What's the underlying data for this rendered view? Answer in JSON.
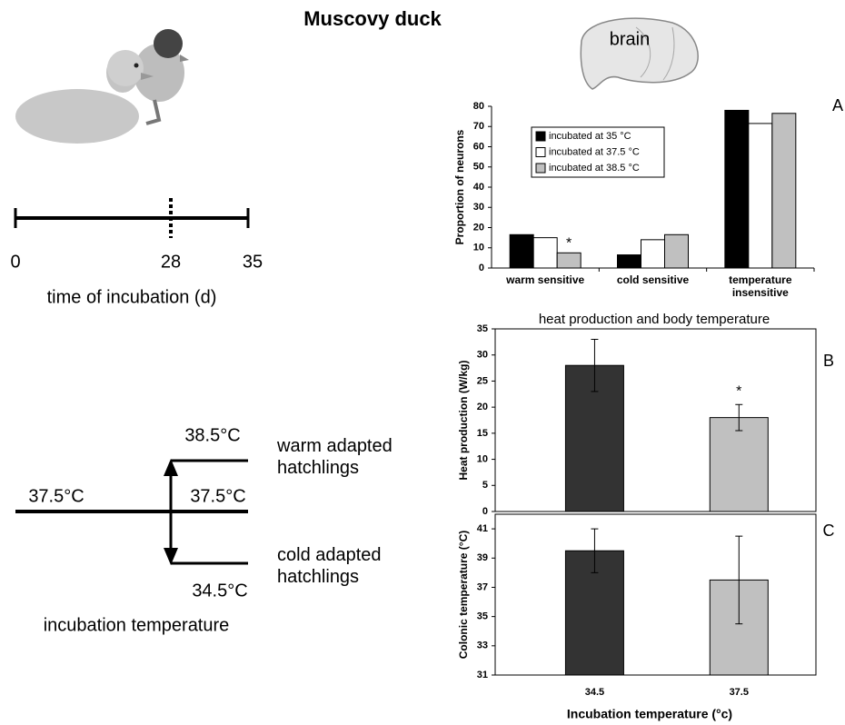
{
  "title": "Muscovy duck",
  "brain_label": "brain",
  "timeline": {
    "ticks": [
      "0",
      "28",
      "35"
    ],
    "label": "time of incubation (d)"
  },
  "temperature_diagram": {
    "upper": "38.5°C",
    "baseline_left": "37.5°C",
    "baseline_right": "37.5°C",
    "lower": "34.5°C",
    "warm": "warm adapted hatchlings",
    "cold": "cold adapted hatchlings",
    "label": "incubation temperature"
  },
  "chart_data": [
    {
      "type": "grouped_bar",
      "panel": "A",
      "ylabel": "Proportion of neurons",
      "categories": [
        "warm sensitive",
        "cold sensitive",
        "temperature insensitive"
      ],
      "series": [
        {
          "name": "incubated at 35 °C",
          "color": "#000000",
          "values": [
            16.5,
            6.5,
            78
          ]
        },
        {
          "name": "incubated at 37.5 °C",
          "color": "#ffffff",
          "values": [
            15,
            14,
            71.5
          ]
        },
        {
          "name": "incubated at 38.5 °C",
          "color": "#c0c0c0",
          "values": [
            7.5,
            16.5,
            76.5
          ]
        }
      ],
      "ylim": [
        0,
        80
      ],
      "yticks": [
        0,
        10,
        20,
        30,
        40,
        50,
        60,
        70,
        80
      ],
      "annotation": "*"
    },
    {
      "type": "errorbar_bar",
      "panel": "B",
      "title": "heat production and body temperature",
      "ylabel": "Heat production (W/kg)",
      "values": [
        28,
        18
      ],
      "errors": [
        5,
        2.5
      ],
      "colors": [
        "#333333",
        "#c0c0c0"
      ],
      "ylim": [
        0,
        35
      ],
      "yticks": [
        0,
        5,
        10,
        15,
        20,
        25,
        30,
        35
      ],
      "annotation": "*"
    },
    {
      "type": "errorbar_bar",
      "panel": "C",
      "ylabel": "Colonic temperature (°C)",
      "categories": [
        "34.5",
        "37.5"
      ],
      "xlabel": "Incubation temperature (°c)",
      "values": [
        39.5,
        37.5
      ],
      "errors": [
        1.5,
        3
      ],
      "colors": [
        "#333333",
        "#c0c0c0"
      ],
      "ylim": [
        31,
        42
      ],
      "yticks": [
        31,
        33,
        35,
        37,
        39,
        41
      ]
    }
  ]
}
